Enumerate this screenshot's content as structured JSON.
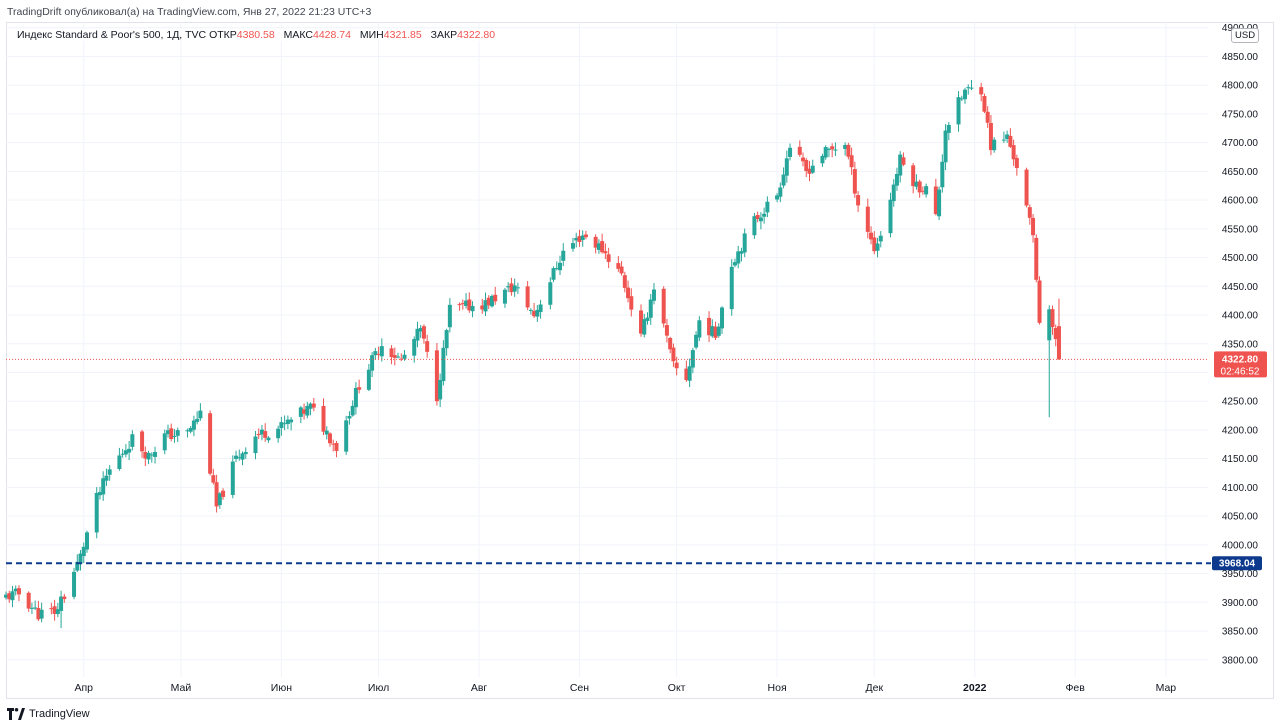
{
  "header": {
    "published_by": "TradingDrift опубликовал(а) на TradingView.com, Янв 27, 2022 21:23 UTC+3"
  },
  "legend": {
    "symbol": "Индекс Standard & Poor's 500, 1Д, TVC",
    "open_label": "ОТКР",
    "open_value": "4380.58",
    "high_label": "МАКС",
    "high_value": "4428.74",
    "low_label": "МИН",
    "low_value": "4321.85",
    "close_label": "ЗАКР",
    "close_value": "4322.80"
  },
  "currency": "USD",
  "footer": {
    "brand": "TradingView"
  },
  "colors": {
    "up": "#26a69a",
    "down": "#ef5350",
    "support_line": "#0d3a8c",
    "price_line": "#ef5350",
    "grid": "#f0f3fa",
    "axis_text": "#131722"
  },
  "chart_data": {
    "type": "candlestick",
    "title": "",
    "xlabel": "",
    "ylabel": "",
    "ylim": [
      3770,
      4910
    ],
    "y_ticks": [
      "3800.00",
      "3850.00",
      "3900.00",
      "3950.00",
      "4000.00",
      "4050.00",
      "4100.00",
      "4150.00",
      "4200.00",
      "4250.00",
      "4300.00",
      "4350.00",
      "4400.00",
      "4450.00",
      "4500.00",
      "4550.00",
      "4600.00",
      "4650.00",
      "4700.00",
      "4750.00",
      "4800.00",
      "4850.00",
      "4900.00"
    ],
    "x_ticks": [
      {
        "label": "Апр",
        "date": "2021-04-01"
      },
      {
        "label": "Май",
        "date": "2021-05-01"
      },
      {
        "label": "Июн",
        "date": "2021-06-01"
      },
      {
        "label": "Июл",
        "date": "2021-07-01"
      },
      {
        "label": "Авг",
        "date": "2021-08-01"
      },
      {
        "label": "Сен",
        "date": "2021-09-01"
      },
      {
        "label": "Окт",
        "date": "2021-10-01"
      },
      {
        "label": "Ноя",
        "date": "2021-11-01"
      },
      {
        "label": "Дек",
        "date": "2021-12-01"
      },
      {
        "label": "2022",
        "date": "2022-01-01"
      },
      {
        "label": "Фев",
        "date": "2022-02-01"
      },
      {
        "label": "Мар",
        "date": "2022-03-01"
      }
    ],
    "x_range": [
      "2021-03-08",
      "2022-03-14"
    ],
    "support_line": {
      "value": 3968.04,
      "label": "3968.04"
    },
    "last_price": {
      "value": 4322.8,
      "label": "4322.80",
      "countdown": "02:46:52"
    },
    "grid": true,
    "anchors": [
      {
        "date": "2021-03-08",
        "price": 3910
      },
      {
        "date": "2021-03-12",
        "price": 3915
      },
      {
        "date": "2021-03-18",
        "price": 3880
      },
      {
        "date": "2021-03-24",
        "price": 3885
      },
      {
        "date": "2021-03-31",
        "price": 3980
      },
      {
        "date": "2021-04-05",
        "price": 4080
      },
      {
        "date": "2021-04-09",
        "price": 4130
      },
      {
        "date": "2021-04-16",
        "price": 4185
      },
      {
        "date": "2021-04-21",
        "price": 4155
      },
      {
        "date": "2021-04-26",
        "price": 4190
      },
      {
        "date": "2021-05-03",
        "price": 4195
      },
      {
        "date": "2021-05-07",
        "price": 4230
      },
      {
        "date": "2021-05-12",
        "price": 4065
      },
      {
        "date": "2021-05-18",
        "price": 4150
      },
      {
        "date": "2021-05-24",
        "price": 4190
      },
      {
        "date": "2021-06-01",
        "price": 4205
      },
      {
        "date": "2021-06-10",
        "price": 4240
      },
      {
        "date": "2021-06-18",
        "price": 4170
      },
      {
        "date": "2021-06-25",
        "price": 4280
      },
      {
        "date": "2021-07-02",
        "price": 4350
      },
      {
        "date": "2021-07-08",
        "price": 4320
      },
      {
        "date": "2021-07-14",
        "price": 4375
      },
      {
        "date": "2021-07-19",
        "price": 4260
      },
      {
        "date": "2021-07-23",
        "price": 4410
      },
      {
        "date": "2021-08-03",
        "price": 4420
      },
      {
        "date": "2021-08-12",
        "price": 4450
      },
      {
        "date": "2021-08-18",
        "price": 4400
      },
      {
        "date": "2021-08-27",
        "price": 4510
      },
      {
        "date": "2021-09-02",
        "price": 4540
      },
      {
        "date": "2021-09-08",
        "price": 4515
      },
      {
        "date": "2021-09-14",
        "price": 4470
      },
      {
        "date": "2021-09-20",
        "price": 4360
      },
      {
        "date": "2021-09-24",
        "price": 4450
      },
      {
        "date": "2021-09-30",
        "price": 4310
      },
      {
        "date": "2021-10-04",
        "price": 4290
      },
      {
        "date": "2021-10-08",
        "price": 4390
      },
      {
        "date": "2021-10-13",
        "price": 4365
      },
      {
        "date": "2021-10-18",
        "price": 4490
      },
      {
        "date": "2021-10-25",
        "price": 4565
      },
      {
        "date": "2021-11-01",
        "price": 4610
      },
      {
        "date": "2021-11-05",
        "price": 4695
      },
      {
        "date": "2021-11-10",
        "price": 4650
      },
      {
        "date": "2021-11-15",
        "price": 4680
      },
      {
        "date": "2021-11-22",
        "price": 4700
      },
      {
        "date": "2021-11-26",
        "price": 4595
      },
      {
        "date": "2021-12-01",
        "price": 4515
      },
      {
        "date": "2021-12-03",
        "price": 4540
      },
      {
        "date": "2021-12-09",
        "price": 4670
      },
      {
        "date": "2021-12-14",
        "price": 4625
      },
      {
        "date": "2021-12-17",
        "price": 4620
      },
      {
        "date": "2021-12-20",
        "price": 4570
      },
      {
        "date": "2021-12-23",
        "price": 4725
      },
      {
        "date": "2021-12-29",
        "price": 4790
      },
      {
        "date": "2022-01-03",
        "price": 4795
      },
      {
        "date": "2022-01-06",
        "price": 4695
      },
      {
        "date": "2022-01-11",
        "price": 4710
      },
      {
        "date": "2022-01-14",
        "price": 4660
      },
      {
        "date": "2022-01-19",
        "price": 4535
      },
      {
        "date": "2022-01-21",
        "price": 4395
      },
      {
        "date": "2022-01-24",
        "price": 4410
      },
      {
        "date": "2022-01-26",
        "price": 4350
      },
      {
        "date": "2022-01-27",
        "price": 4323
      }
    ],
    "key_bars": [
      {
        "date": "2021-03-25",
        "open": 3885,
        "high": 3920,
        "low": 3855,
        "close": 3910
      },
      {
        "date": "2022-01-24",
        "open": 4356,
        "high": 4417,
        "low": 4222,
        "close": 4410
      },
      {
        "date": "2022-01-27",
        "open": 4380.58,
        "high": 4428.74,
        "low": 4321.85,
        "close": 4322.8
      }
    ]
  }
}
